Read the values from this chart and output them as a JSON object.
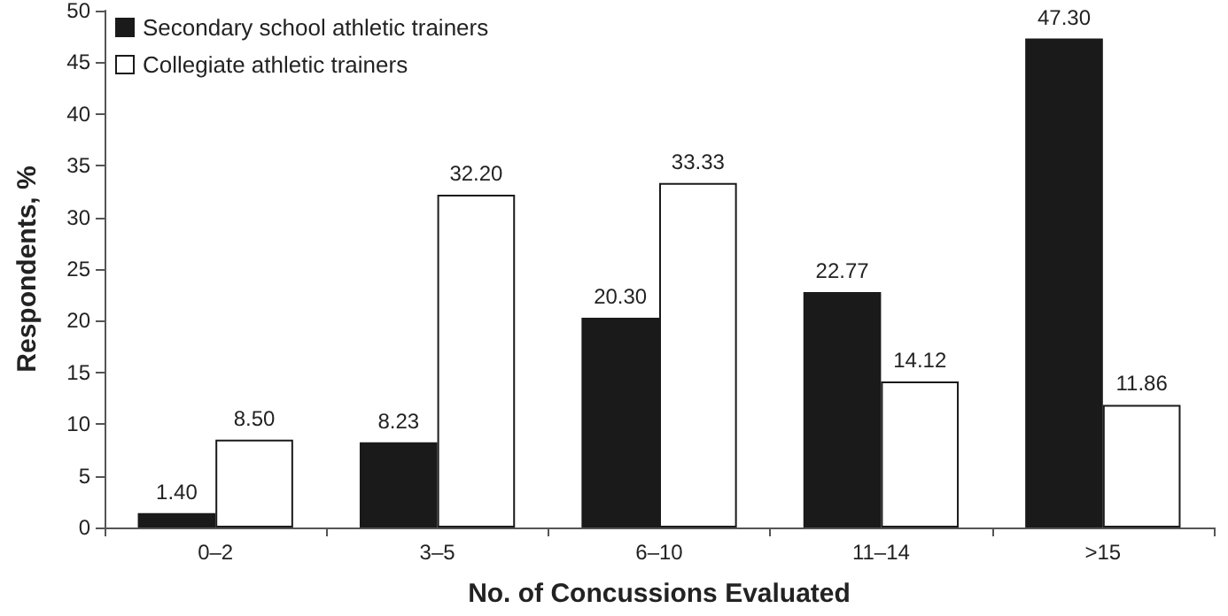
{
  "chart_data": {
    "type": "bar",
    "xlabel": "No. of Concussions Evaluated",
    "ylabel": "Respondents, %",
    "categories": [
      "0–2",
      "3–5",
      "6–10",
      "11–14",
      ">15"
    ],
    "series": [
      {
        "name": "Secondary school athletic trainers",
        "color": "#1a1a1a",
        "values": [
          1.4,
          8.23,
          20.3,
          22.77,
          47.3
        ],
        "value_labels": [
          "1.40",
          "8.23",
          "20.30",
          "22.77",
          "47.30"
        ]
      },
      {
        "name": "Collegiate athletic trainers",
        "color": "#ffffff",
        "values": [
          8.5,
          32.2,
          33.33,
          14.12,
          11.86
        ],
        "value_labels": [
          "8.50",
          "32.20",
          "33.33",
          "14.12",
          "11.86"
        ]
      }
    ],
    "ylim": [
      0,
      50
    ],
    "yticks": [
      0,
      5,
      10,
      15,
      20,
      25,
      30,
      35,
      40,
      45,
      50
    ],
    "grid": false,
    "legend": "top left"
  }
}
